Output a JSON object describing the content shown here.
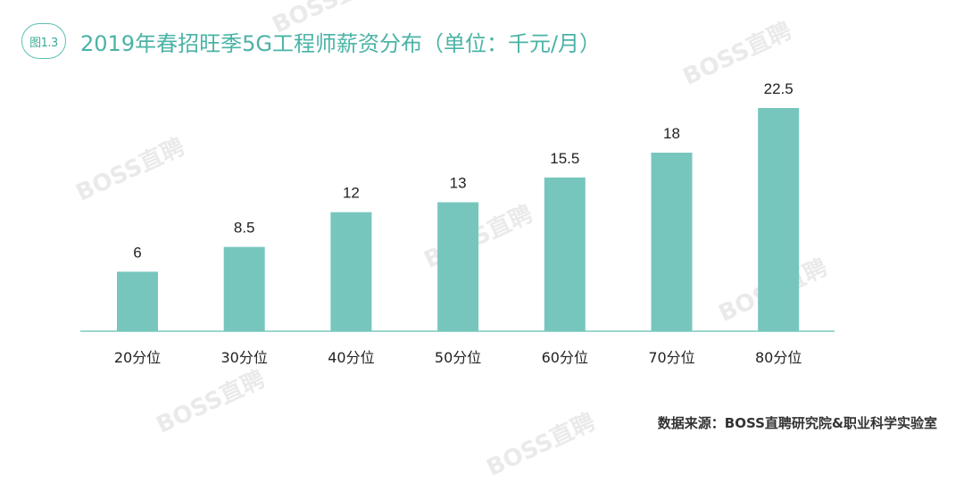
{
  "header": {
    "figure_label": "图1.3",
    "title": "2019年春招旺季5G工程师薪资分布（单位：千元/月）"
  },
  "watermark_text": "BOSS直聘",
  "source_text": "数据来源：BOSS直聘研究院&职业科学实验室",
  "colors": {
    "bar": "#77c6be",
    "accent": "#4bb3a6",
    "axis": "#7ccac1"
  },
  "chart_data": {
    "type": "bar",
    "title": "2019年春招旺季5G工程师薪资分布（单位：千元/月）",
    "categories": [
      "20分位",
      "30分位",
      "40分位",
      "50分位",
      "60分位",
      "70分位",
      "80分位"
    ],
    "values": [
      6,
      8.5,
      12,
      13,
      15.5,
      18,
      22.5
    ],
    "value_labels": [
      "6",
      "8.5",
      "12",
      "13",
      "15.5",
      "18",
      "22.5"
    ],
    "xlabel": "",
    "ylabel": "",
    "ylim": [
      0,
      22.5
    ],
    "grid": false,
    "legend": "none"
  }
}
